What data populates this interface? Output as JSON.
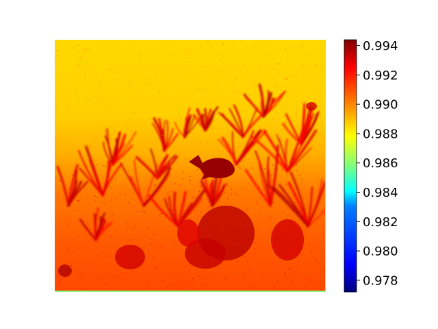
{
  "chart_data": {
    "type": "heatmap",
    "title": "",
    "xlabel": "",
    "ylabel": "",
    "axes_visible": false,
    "colormap": "jet",
    "colorbar": {
      "placement": "right",
      "range": [
        0.9772,
        0.9944
      ],
      "ticks": [
        0.978,
        0.98,
        0.982,
        0.984,
        0.986,
        0.988,
        0.99,
        0.992,
        0.994
      ],
      "tick_labels": [
        "0.978",
        "0.980",
        "0.982",
        "0.984",
        "0.986",
        "0.988",
        "0.990",
        "0.992",
        "0.994"
      ]
    },
    "image_description_values": {
      "upper_region_value": 0.9895,
      "lower_region_value": 0.9925,
      "fish_value": 0.994,
      "bottom_edge_value": 0.9855
    },
    "colors": {
      "jet_stops": [
        "#00007f",
        "#0000ff",
        "#007fff",
        "#00ffff",
        "#7fff7f",
        "#ffff00",
        "#ff7f00",
        "#ff0000",
        "#7f0000"
      ]
    }
  }
}
